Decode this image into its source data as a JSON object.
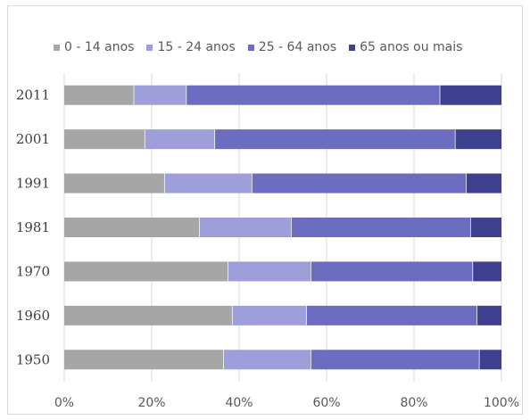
{
  "chart_data": {
    "type": "bar",
    "orientation": "horizontal",
    "stacked": "percent",
    "categories": [
      "2011",
      "2001",
      "1991",
      "1981",
      "1970",
      "1960",
      "1950"
    ],
    "series": [
      {
        "name": "0 - 14 anos",
        "color": "#a6a6a6",
        "values": [
          16,
          18.5,
          23,
          31,
          37.5,
          38.5,
          36.5
        ]
      },
      {
        "name": "15 - 24 anos",
        "color": "#9e9edb",
        "values": [
          12,
          16,
          20,
          21,
          19,
          17,
          20
        ]
      },
      {
        "name": "25 - 64 anos",
        "color": "#6c6cc1",
        "values": [
          58,
          55,
          49,
          41,
          37,
          39,
          38.5
        ]
      },
      {
        "name": "65 anos ou mais",
        "color": "#3f3f8f",
        "values": [
          14,
          10.5,
          8,
          7,
          6.5,
          5.5,
          5
        ]
      }
    ],
    "x_ticks": [
      "0%",
      "20%",
      "40%",
      "60%",
      "80%",
      "100%"
    ],
    "xlim": [
      0,
      100
    ],
    "grid": "vertical",
    "legend_position": "top"
  }
}
